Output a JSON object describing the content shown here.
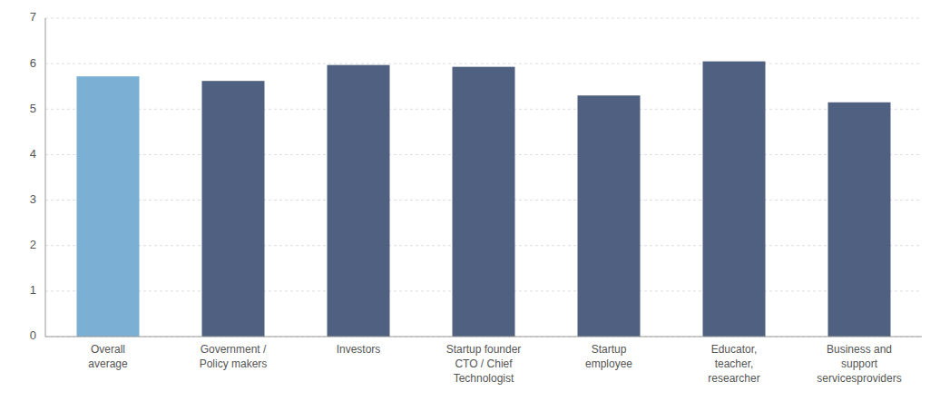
{
  "chart_data": {
    "type": "bar",
    "categories": [
      "Overall\naverage",
      "Government /\nPolicy makers",
      "Investors",
      "Startup founder\nCTO / Chief\nTechnologist",
      "Startup\nemployee",
      "Educator,\nteacher,\nresearcher",
      "Business and\nsupport\nservicesproviders"
    ],
    "values": [
      5.72,
      5.62,
      5.97,
      5.93,
      5.3,
      6.05,
      5.15
    ],
    "colors": [
      "#7bafd4",
      "#506080",
      "#506080",
      "#506080",
      "#506080",
      "#506080",
      "#506080"
    ],
    "ylim": [
      0,
      7
    ],
    "yticks": [
      0,
      1,
      2,
      3,
      4,
      5,
      6,
      7
    ],
    "grid": true
  }
}
